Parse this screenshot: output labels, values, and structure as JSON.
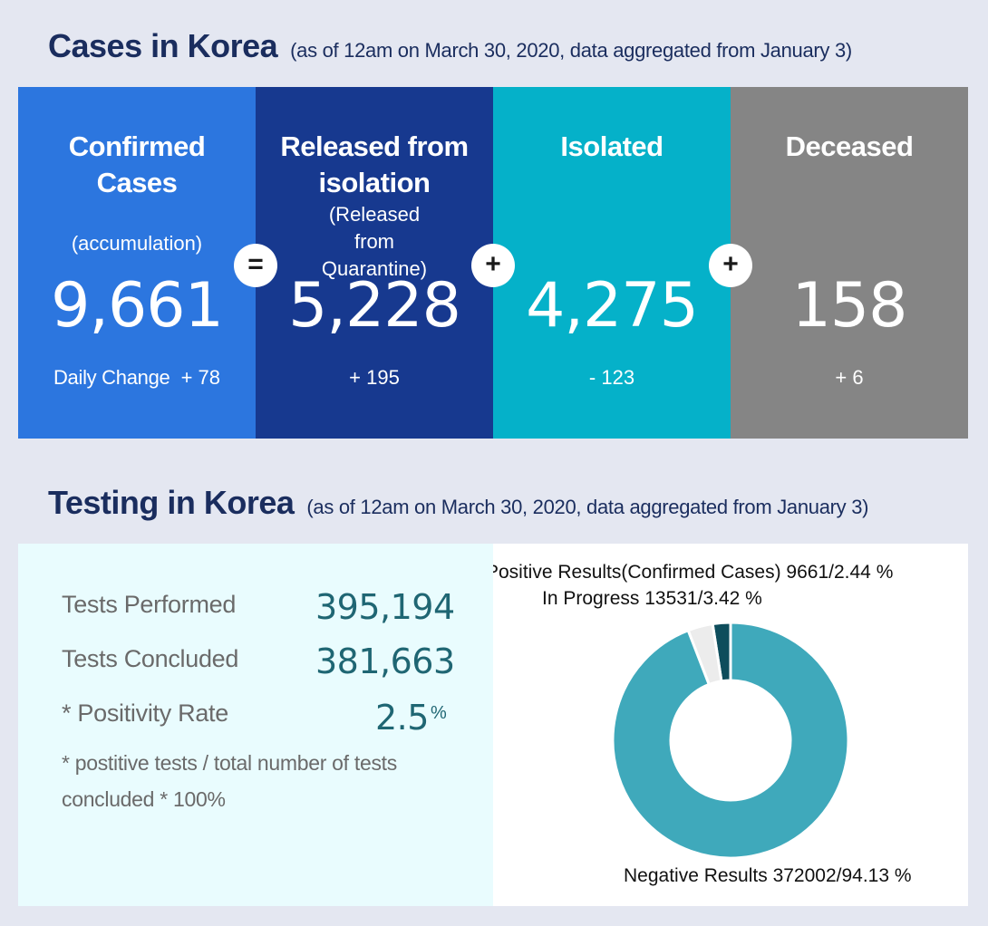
{
  "cases": {
    "title": "Cases in Korea",
    "subtitle": "(as of 12am on March 30, 2020, data aggregated from January 3)",
    "boxes": [
      {
        "head": "Confirmed Cases",
        "note": "(accumulation)",
        "value": "9,661",
        "change_label": "Daily Change",
        "change": "+ 78",
        "color": "#2c76df"
      },
      {
        "head": "Released from isolation",
        "note": "(Released from Quarantine)",
        "value": "5,228",
        "change": "+ 195",
        "color": "#17398f"
      },
      {
        "head": "Isolated",
        "value": "4,275",
        "change": "- 123",
        "color": "#05b1c9"
      },
      {
        "head": "Deceased",
        "value": "158",
        "change": "+ 6",
        "color": "#858585"
      }
    ],
    "operators": [
      "=",
      "+",
      "+"
    ]
  },
  "testing": {
    "title": "Testing in Korea",
    "subtitle": "(as of 12am on March 30, 2020, data aggregated from January 3)",
    "metrics": [
      {
        "label": "Tests Performed",
        "value": "395,194"
      },
      {
        "label": "Tests Concluded",
        "value": "381,663"
      },
      {
        "label": "* Positivity Rate",
        "value": "2.5",
        "unit": "%"
      }
    ],
    "footnote": "* postitive tests / total number of tests concluded * 100%"
  },
  "chart_data": {
    "type": "pie",
    "donut": true,
    "slices": [
      {
        "label": "Positive Results(Confirmed Cases) 9661/2.44 %",
        "name": "Positive Results(Confirmed Cases)",
        "value": 9661,
        "percent": 2.44,
        "color": "#0e4d5c"
      },
      {
        "label": "In Progress 13531/3.42 %",
        "name": "In Progress",
        "value": 13531,
        "percent": 3.42,
        "color": "#ececec"
      },
      {
        "label": "Negative Results 372002/94.13 %",
        "name": "Negative Results",
        "value": 372002,
        "percent": 94.13,
        "color": "#3fa9bb"
      }
    ],
    "slice_order": "counterclockwise from top"
  }
}
